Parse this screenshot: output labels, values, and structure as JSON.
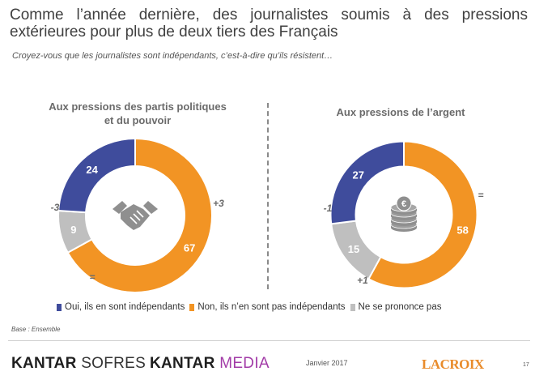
{
  "header": {
    "title": "Comme l’année dernière, des journalistes soumis à des pressions extérieures pour plus de deux tiers des Français",
    "subtitle": "Croyez-vous que les journalistes sont indépendants, c’est-à-dire qu’ils résistent…"
  },
  "colors": {
    "oui": "#3f4c9c",
    "non": "#f29424",
    "nsp": "#bfbfbf"
  },
  "chart_data": [
    {
      "type": "pie",
      "title": "Aux pressions des partis politiques et du pouvoir",
      "icon": "handshake-icon",
      "categories": [
        "Oui, ils en sont indépendants",
        "Non, ils n’en sont pas indépendants",
        "Ne se prononce pas"
      ],
      "values": [
        24,
        67,
        9
      ],
      "labels": [
        "24",
        "67",
        "9"
      ],
      "changes": [
        "-3",
        "+3",
        "="
      ]
    },
    {
      "type": "pie",
      "title": "Aux pressions de l’argent",
      "icon": "coins-icon",
      "categories": [
        "Oui, ils en sont indépendants",
        "Non, ils n’en sont pas indépendants",
        "Ne se prononce pas"
      ],
      "values": [
        27,
        58,
        15
      ],
      "labels": [
        "27",
        "58",
        "15"
      ],
      "changes": [
        "-1",
        "=",
        "+1"
      ]
    }
  ],
  "legend": {
    "oui": "Oui, ils en sont indépendants",
    "non": "Non, ils n’en sont pas indépendants",
    "nsp": "Ne se prononce pas"
  },
  "footer": {
    "base": "Base : Ensemble",
    "kantar_sofres_bold": "KANTAR",
    "kantar_sofres_light": "SOFRES",
    "kantar_media_bold": "KANTAR",
    "kantar_media_light": "MEDIA",
    "date": "Janvier 2017",
    "lacroix": "LACROIX",
    "page": "17"
  }
}
